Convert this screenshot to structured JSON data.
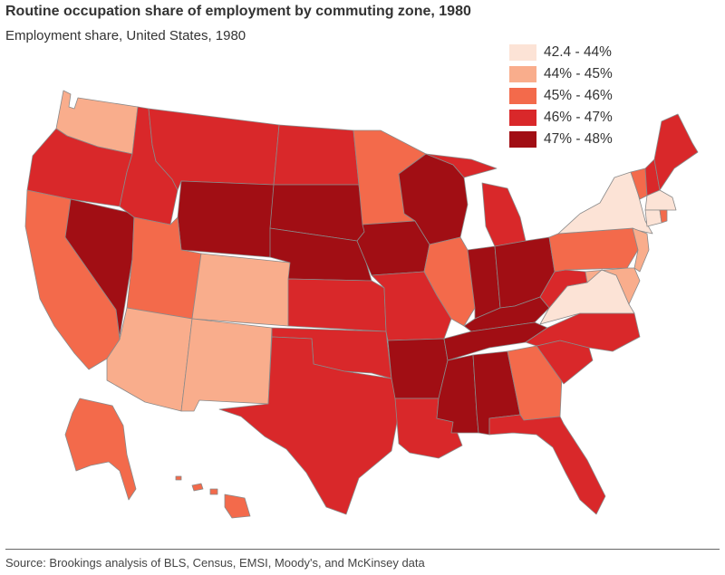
{
  "title": "Routine occupation share of employment by commuting zone, 1980",
  "subtitle": "Employment share, United States, 1980",
  "legend": [
    {
      "label": "42.4 - 44%",
      "color": "#fce3d6"
    },
    {
      "label": "44% - 45%",
      "color": "#f9ad8c"
    },
    {
      "label": "45% - 46%",
      "color": "#f36a4b"
    },
    {
      "label": "46% - 47%",
      "color": "#d9282a"
    },
    {
      "label": "47% - 48%",
      "color": "#a10e14"
    }
  ],
  "source": "Source: Brookings analysis of BLS, Census, EMSI, Moody's, and McKinsey data"
}
